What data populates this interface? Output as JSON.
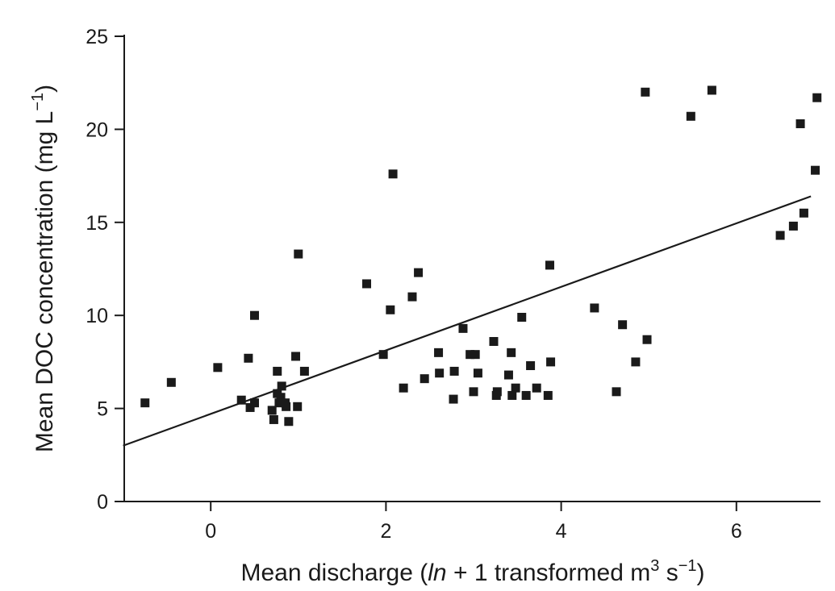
{
  "chart_data": {
    "type": "scatter",
    "xlabel": {
      "prefix": "Mean discharge (",
      "italic": "ln",
      "middle": " + 1 transformed m",
      "sup1": "3",
      "middle2": " s",
      "sup2": "−1",
      "suffix": ")"
    },
    "ylabel": {
      "main": "Mean DOC concentration (mg L",
      "sup": "−1",
      "suffix": ")"
    },
    "xlim": [
      -1.0,
      7.0
    ],
    "ylim": [
      0,
      25
    ],
    "xticks": [
      0,
      2,
      4,
      6
    ],
    "yticks": [
      0,
      5,
      10,
      15,
      20,
      25
    ],
    "grid": false,
    "points": [
      [
        -0.75,
        5.3
      ],
      [
        -0.45,
        6.4
      ],
      [
        0.08,
        7.2
      ],
      [
        0.35,
        5.45
      ],
      [
        0.43,
        7.7
      ],
      [
        0.45,
        5.05
      ],
      [
        0.5,
        5.3
      ],
      [
        0.5,
        10.0
      ],
      [
        0.7,
        4.9
      ],
      [
        0.72,
        4.4
      ],
      [
        0.76,
        7.0
      ],
      [
        0.76,
        5.8
      ],
      [
        0.78,
        5.3
      ],
      [
        0.8,
        5.6
      ],
      [
        0.81,
        6.2
      ],
      [
        0.85,
        5.3
      ],
      [
        0.86,
        5.1
      ],
      [
        0.89,
        4.3
      ],
      [
        0.97,
        7.8
      ],
      [
        0.99,
        5.1
      ],
      [
        1.0,
        13.3
      ],
      [
        1.07,
        7.0
      ],
      [
        1.78,
        11.7
      ],
      [
        1.97,
        7.9
      ],
      [
        2.05,
        10.3
      ],
      [
        2.08,
        17.6
      ],
      [
        2.2,
        6.1
      ],
      [
        2.3,
        11.0
      ],
      [
        2.37,
        12.3
      ],
      [
        2.44,
        6.6
      ],
      [
        2.6,
        8.0
      ],
      [
        2.61,
        6.9
      ],
      [
        2.77,
        5.5
      ],
      [
        2.78,
        7.0
      ],
      [
        2.88,
        9.3
      ],
      [
        2.96,
        7.9
      ],
      [
        3.0,
        5.9
      ],
      [
        3.02,
        7.9
      ],
      [
        3.05,
        6.9
      ],
      [
        3.23,
        8.6
      ],
      [
        3.26,
        5.7
      ],
      [
        3.27,
        5.9
      ],
      [
        3.4,
        6.8
      ],
      [
        3.43,
        8.0
      ],
      [
        3.44,
        5.7
      ],
      [
        3.48,
        6.1
      ],
      [
        3.55,
        9.9
      ],
      [
        3.6,
        5.7
      ],
      [
        3.65,
        7.3
      ],
      [
        3.72,
        6.1
      ],
      [
        3.85,
        5.7
      ],
      [
        3.87,
        12.7
      ],
      [
        3.88,
        7.5
      ],
      [
        4.38,
        10.4
      ],
      [
        4.63,
        5.9
      ],
      [
        4.7,
        9.5
      ],
      [
        4.85,
        7.5
      ],
      [
        4.96,
        22.0
      ],
      [
        4.98,
        8.7
      ],
      [
        5.48,
        20.7
      ],
      [
        5.72,
        22.1
      ],
      [
        6.5,
        14.3
      ],
      [
        6.65,
        14.8
      ],
      [
        6.73,
        20.3
      ],
      [
        6.77,
        15.5
      ],
      [
        6.9,
        17.8
      ],
      [
        6.92,
        21.7
      ]
    ],
    "trendline": {
      "x": [
        -1.0,
        6.85
      ],
      "y": [
        3.0,
        16.4
      ]
    }
  }
}
